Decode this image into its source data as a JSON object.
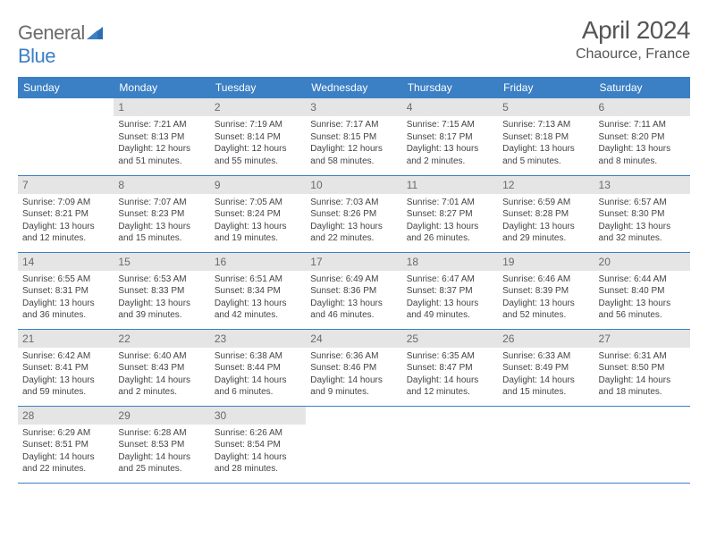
{
  "logo": {
    "word1": "General",
    "word2": "Blue"
  },
  "title": "April 2024",
  "location": "Chaource, France",
  "colors": {
    "header_bg": "#3b7fc4",
    "header_text": "#ffffff",
    "daynum_bg": "#e5e5e5",
    "daynum_text": "#6a6a6a",
    "body_text": "#444444",
    "title_text": "#555555",
    "logo_gray": "#6b6b6b",
    "logo_blue": "#3b7fc4"
  },
  "weekdays": [
    "Sunday",
    "Monday",
    "Tuesday",
    "Wednesday",
    "Thursday",
    "Friday",
    "Saturday"
  ],
  "weeks": [
    [
      null,
      {
        "n": "1",
        "sr": "Sunrise: 7:21 AM",
        "ss": "Sunset: 8:13 PM",
        "d1": "Daylight: 12 hours",
        "d2": "and 51 minutes."
      },
      {
        "n": "2",
        "sr": "Sunrise: 7:19 AM",
        "ss": "Sunset: 8:14 PM",
        "d1": "Daylight: 12 hours",
        "d2": "and 55 minutes."
      },
      {
        "n": "3",
        "sr": "Sunrise: 7:17 AM",
        "ss": "Sunset: 8:15 PM",
        "d1": "Daylight: 12 hours",
        "d2": "and 58 minutes."
      },
      {
        "n": "4",
        "sr": "Sunrise: 7:15 AM",
        "ss": "Sunset: 8:17 PM",
        "d1": "Daylight: 13 hours",
        "d2": "and 2 minutes."
      },
      {
        "n": "5",
        "sr": "Sunrise: 7:13 AM",
        "ss": "Sunset: 8:18 PM",
        "d1": "Daylight: 13 hours",
        "d2": "and 5 minutes."
      },
      {
        "n": "6",
        "sr": "Sunrise: 7:11 AM",
        "ss": "Sunset: 8:20 PM",
        "d1": "Daylight: 13 hours",
        "d2": "and 8 minutes."
      }
    ],
    [
      {
        "n": "7",
        "sr": "Sunrise: 7:09 AM",
        "ss": "Sunset: 8:21 PM",
        "d1": "Daylight: 13 hours",
        "d2": "and 12 minutes."
      },
      {
        "n": "8",
        "sr": "Sunrise: 7:07 AM",
        "ss": "Sunset: 8:23 PM",
        "d1": "Daylight: 13 hours",
        "d2": "and 15 minutes."
      },
      {
        "n": "9",
        "sr": "Sunrise: 7:05 AM",
        "ss": "Sunset: 8:24 PM",
        "d1": "Daylight: 13 hours",
        "d2": "and 19 minutes."
      },
      {
        "n": "10",
        "sr": "Sunrise: 7:03 AM",
        "ss": "Sunset: 8:26 PM",
        "d1": "Daylight: 13 hours",
        "d2": "and 22 minutes."
      },
      {
        "n": "11",
        "sr": "Sunrise: 7:01 AM",
        "ss": "Sunset: 8:27 PM",
        "d1": "Daylight: 13 hours",
        "d2": "and 26 minutes."
      },
      {
        "n": "12",
        "sr": "Sunrise: 6:59 AM",
        "ss": "Sunset: 8:28 PM",
        "d1": "Daylight: 13 hours",
        "d2": "and 29 minutes."
      },
      {
        "n": "13",
        "sr": "Sunrise: 6:57 AM",
        "ss": "Sunset: 8:30 PM",
        "d1": "Daylight: 13 hours",
        "d2": "and 32 minutes."
      }
    ],
    [
      {
        "n": "14",
        "sr": "Sunrise: 6:55 AM",
        "ss": "Sunset: 8:31 PM",
        "d1": "Daylight: 13 hours",
        "d2": "and 36 minutes."
      },
      {
        "n": "15",
        "sr": "Sunrise: 6:53 AM",
        "ss": "Sunset: 8:33 PM",
        "d1": "Daylight: 13 hours",
        "d2": "and 39 minutes."
      },
      {
        "n": "16",
        "sr": "Sunrise: 6:51 AM",
        "ss": "Sunset: 8:34 PM",
        "d1": "Daylight: 13 hours",
        "d2": "and 42 minutes."
      },
      {
        "n": "17",
        "sr": "Sunrise: 6:49 AM",
        "ss": "Sunset: 8:36 PM",
        "d1": "Daylight: 13 hours",
        "d2": "and 46 minutes."
      },
      {
        "n": "18",
        "sr": "Sunrise: 6:47 AM",
        "ss": "Sunset: 8:37 PM",
        "d1": "Daylight: 13 hours",
        "d2": "and 49 minutes."
      },
      {
        "n": "19",
        "sr": "Sunrise: 6:46 AM",
        "ss": "Sunset: 8:39 PM",
        "d1": "Daylight: 13 hours",
        "d2": "and 52 minutes."
      },
      {
        "n": "20",
        "sr": "Sunrise: 6:44 AM",
        "ss": "Sunset: 8:40 PM",
        "d1": "Daylight: 13 hours",
        "d2": "and 56 minutes."
      }
    ],
    [
      {
        "n": "21",
        "sr": "Sunrise: 6:42 AM",
        "ss": "Sunset: 8:41 PM",
        "d1": "Daylight: 13 hours",
        "d2": "and 59 minutes."
      },
      {
        "n": "22",
        "sr": "Sunrise: 6:40 AM",
        "ss": "Sunset: 8:43 PM",
        "d1": "Daylight: 14 hours",
        "d2": "and 2 minutes."
      },
      {
        "n": "23",
        "sr": "Sunrise: 6:38 AM",
        "ss": "Sunset: 8:44 PM",
        "d1": "Daylight: 14 hours",
        "d2": "and 6 minutes."
      },
      {
        "n": "24",
        "sr": "Sunrise: 6:36 AM",
        "ss": "Sunset: 8:46 PM",
        "d1": "Daylight: 14 hours",
        "d2": "and 9 minutes."
      },
      {
        "n": "25",
        "sr": "Sunrise: 6:35 AM",
        "ss": "Sunset: 8:47 PM",
        "d1": "Daylight: 14 hours",
        "d2": "and 12 minutes."
      },
      {
        "n": "26",
        "sr": "Sunrise: 6:33 AM",
        "ss": "Sunset: 8:49 PM",
        "d1": "Daylight: 14 hours",
        "d2": "and 15 minutes."
      },
      {
        "n": "27",
        "sr": "Sunrise: 6:31 AM",
        "ss": "Sunset: 8:50 PM",
        "d1": "Daylight: 14 hours",
        "d2": "and 18 minutes."
      }
    ],
    [
      {
        "n": "28",
        "sr": "Sunrise: 6:29 AM",
        "ss": "Sunset: 8:51 PM",
        "d1": "Daylight: 14 hours",
        "d2": "and 22 minutes."
      },
      {
        "n": "29",
        "sr": "Sunrise: 6:28 AM",
        "ss": "Sunset: 8:53 PM",
        "d1": "Daylight: 14 hours",
        "d2": "and 25 minutes."
      },
      {
        "n": "30",
        "sr": "Sunrise: 6:26 AM",
        "ss": "Sunset: 8:54 PM",
        "d1": "Daylight: 14 hours",
        "d2": "and 28 minutes."
      },
      null,
      null,
      null,
      null
    ]
  ]
}
